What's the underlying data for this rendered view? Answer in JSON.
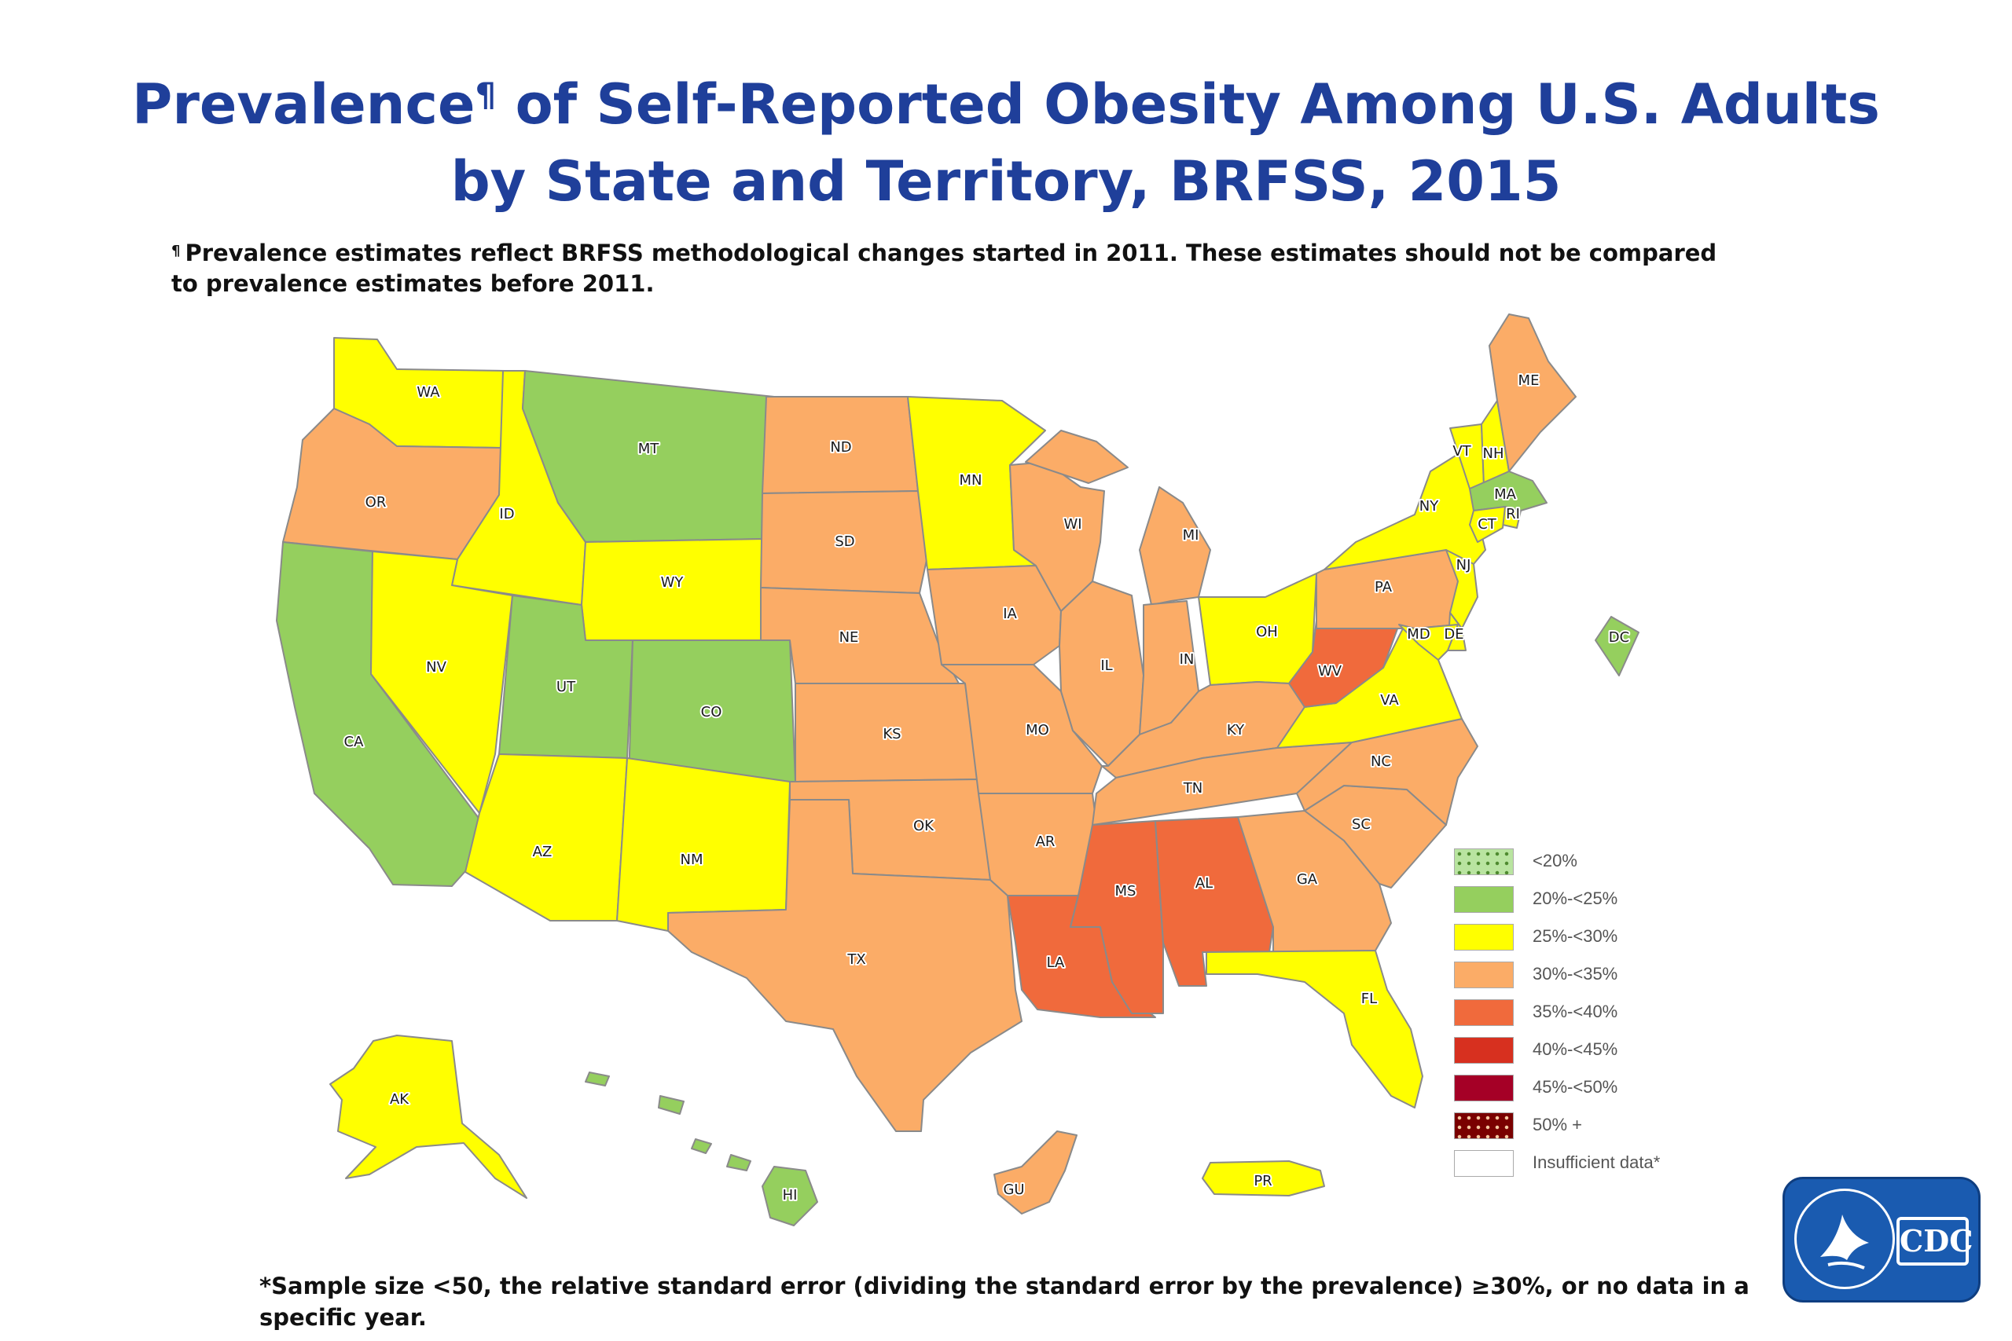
{
  "title": {
    "line1_main": "Prevalence",
    "line1_mark": "¶",
    "line1_rest": " of Self-Reported Obesity Among U.S. Adults",
    "line2": "by State and Territory, BRFSS, 2015"
  },
  "note": {
    "mark": "¶",
    "text": "Prevalence estimates reflect BRFSS methodological changes started in 2011. These estimates should not be compared to prevalence estimates before 2011."
  },
  "footnote": "*Sample size <50, the relative standard error (dividing the standard error by the prevalence) ≥30%, or no data in a specific year.",
  "logo": {
    "text": "CDC"
  },
  "legend": [
    {
      "label": "<20%",
      "color": "#b9e4a0",
      "pattern": "dots"
    },
    {
      "label": "20%-<25%",
      "color": "#95cf5e"
    },
    {
      "label": "25%-<30%",
      "color": "#ffff00"
    },
    {
      "label": "30%-<35%",
      "color": "#fbac67"
    },
    {
      "label": "35%-<40%",
      "color": "#f06a3c"
    },
    {
      "label": "40%-<45%",
      "color": "#d7301f"
    },
    {
      "label": "45%-<50%",
      "color": "#a50026"
    },
    {
      "label": "50% +",
      "color": "#7a0000",
      "pattern": "dots"
    },
    {
      "label": "Insufficient data*",
      "color": "#ffffff"
    }
  ],
  "states": [
    {
      "code": "WA",
      "category": "25%-<30%"
    },
    {
      "code": "OR",
      "category": "30%-<35%"
    },
    {
      "code": "CA",
      "category": "20%-<25%"
    },
    {
      "code": "ID",
      "category": "25%-<30%"
    },
    {
      "code": "NV",
      "category": "25%-<30%"
    },
    {
      "code": "MT",
      "category": "20%-<25%"
    },
    {
      "code": "WY",
      "category": "25%-<30%"
    },
    {
      "code": "UT",
      "category": "20%-<25%"
    },
    {
      "code": "CO",
      "category": "20%-<25%"
    },
    {
      "code": "AZ",
      "category": "25%-<30%"
    },
    {
      "code": "NM",
      "category": "25%-<30%"
    },
    {
      "code": "ND",
      "category": "30%-<35%"
    },
    {
      "code": "SD",
      "category": "30%-<35%"
    },
    {
      "code": "NE",
      "category": "30%-<35%"
    },
    {
      "code": "KS",
      "category": "30%-<35%"
    },
    {
      "code": "OK",
      "category": "30%-<35%"
    },
    {
      "code": "TX",
      "category": "30%-<35%"
    },
    {
      "code": "MN",
      "category": "25%-<30%"
    },
    {
      "code": "IA",
      "category": "30%-<35%"
    },
    {
      "code": "MO",
      "category": "30%-<35%"
    },
    {
      "code": "AR",
      "category": "30%-<35%"
    },
    {
      "code": "LA",
      "category": "35%-<40%"
    },
    {
      "code": "WI",
      "category": "30%-<35%"
    },
    {
      "code": "IL",
      "category": "30%-<35%"
    },
    {
      "code": "MI",
      "category": "30%-<35%"
    },
    {
      "code": "IN",
      "category": "30%-<35%"
    },
    {
      "code": "OH",
      "category": "25%-<30%"
    },
    {
      "code": "KY",
      "category": "30%-<35%"
    },
    {
      "code": "TN",
      "category": "30%-<35%"
    },
    {
      "code": "MS",
      "category": "35%-<40%"
    },
    {
      "code": "AL",
      "category": "35%-<40%"
    },
    {
      "code": "GA",
      "category": "30%-<35%"
    },
    {
      "code": "FL",
      "category": "25%-<30%"
    },
    {
      "code": "SC",
      "category": "30%-<35%"
    },
    {
      "code": "NC",
      "category": "30%-<35%"
    },
    {
      "code": "VA",
      "category": "25%-<30%"
    },
    {
      "code": "WV",
      "category": "35%-<40%"
    },
    {
      "code": "PA",
      "category": "30%-<35%"
    },
    {
      "code": "NY",
      "category": "25%-<30%"
    },
    {
      "code": "VT",
      "category": "25%-<30%"
    },
    {
      "code": "NH",
      "category": "25%-<30%"
    },
    {
      "code": "ME",
      "category": "30%-<35%"
    },
    {
      "code": "MA",
      "category": "20%-<25%"
    },
    {
      "code": "RI",
      "category": "25%-<30%"
    },
    {
      "code": "CT",
      "category": "25%-<30%"
    },
    {
      "code": "NJ",
      "category": "25%-<30%"
    },
    {
      "code": "DE",
      "category": "25%-<30%"
    },
    {
      "code": "MD",
      "category": "25%-<30%"
    },
    {
      "code": "DC",
      "category": "20%-<25%"
    },
    {
      "code": "AK",
      "category": "25%-<30%"
    },
    {
      "code": "HI",
      "category": "20%-<25%"
    },
    {
      "code": "GU",
      "category": "30%-<35%"
    },
    {
      "code": "PR",
      "category": "25%-<30%"
    }
  ]
}
